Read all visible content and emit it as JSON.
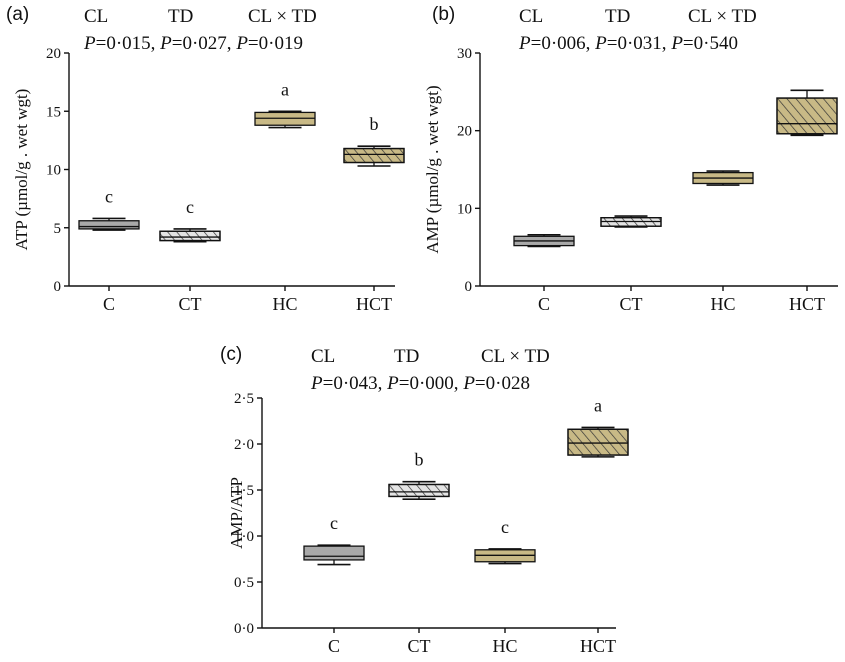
{
  "chart_data": [
    {
      "type": "box",
      "panel_label": "(a)",
      "stats": {
        "headers": [
          "CL",
          "TD",
          "CL × TD"
        ],
        "p_values": [
          "P=0·015, ",
          "P=0·027, ",
          "P=0·019"
        ]
      },
      "ylabel": "ATP (µmol/g . wet wgt)",
      "ylim": [
        0,
        20
      ],
      "yticks": [
        "0",
        "5",
        "10",
        "15",
        "20"
      ],
      "categories": [
        "C",
        "CT",
        "HC",
        "HCT"
      ],
      "boxes": [
        {
          "min": 4.8,
          "q1": 4.9,
          "median": 5.1,
          "q3": 5.6,
          "max": 5.8
        },
        {
          "min": 3.8,
          "q1": 3.9,
          "median": 4.2,
          "q3": 4.7,
          "max": 4.9
        },
        {
          "min": 13.6,
          "q1": 13.8,
          "median": 14.4,
          "q3": 14.9,
          "max": 15.0
        },
        {
          "min": 10.3,
          "q1": 10.6,
          "median": 11.3,
          "q3": 11.8,
          "max": 12.0
        }
      ],
      "letters": [
        "c",
        "c",
        "a",
        "b"
      ]
    },
    {
      "type": "box",
      "panel_label": "(b)",
      "stats": {
        "headers": [
          "CL",
          "TD",
          "CL × TD"
        ],
        "p_values": [
          "P=0·006, ",
          "P=0·031, ",
          "P=0·540"
        ]
      },
      "ylabel": "AMP (µmol/g . wet wgt)",
      "ylim": [
        0,
        30
      ],
      "yticks": [
        "0",
        "10",
        "20",
        "30"
      ],
      "categories": [
        "C",
        "CT",
        "HC",
        "HCT"
      ],
      "boxes": [
        {
          "min": 5.1,
          "q1": 5.2,
          "median": 5.8,
          "q3": 6.4,
          "max": 6.6
        },
        {
          "min": 7.6,
          "q1": 7.7,
          "median": 8.3,
          "q3": 8.8,
          "max": 9.0
        },
        {
          "min": 13.0,
          "q1": 13.2,
          "median": 13.9,
          "q3": 14.6,
          "max": 14.8
        },
        {
          "min": 19.4,
          "q1": 19.6,
          "median": 20.9,
          "q3": 24.2,
          "max": 25.2
        }
      ],
      "letters": []
    },
    {
      "type": "box",
      "panel_label": "(c)",
      "stats": {
        "headers": [
          "CL",
          "TD",
          "CL × TD"
        ],
        "p_values": [
          "P=0·043, ",
          "P=0·000, ",
          "P=0·028"
        ]
      },
      "ylabel": "AMP/ATP",
      "ylim": [
        0,
        2.5
      ],
      "yticks": [
        "0·0",
        "0·5",
        "1·0",
        "1·5",
        "2·0",
        "2·5"
      ],
      "categories": [
        "C",
        "CT",
        "HC",
        "HCT"
      ],
      "boxes": [
        {
          "min": 0.69,
          "q1": 0.74,
          "median": 0.78,
          "q3": 0.89,
          "max": 0.9
        },
        {
          "min": 1.4,
          "q1": 1.43,
          "median": 1.48,
          "q3": 1.56,
          "max": 1.59
        },
        {
          "min": 0.7,
          "q1": 0.72,
          "median": 0.79,
          "q3": 0.85,
          "max": 0.86
        },
        {
          "min": 1.86,
          "q1": 1.88,
          "median": 2.01,
          "q3": 2.16,
          "max": 2.18
        }
      ],
      "letters": [
        "c",
        "b",
        "c",
        "a"
      ]
    }
  ],
  "legend_styles": {
    "C": {
      "fill": "#a9a9a9",
      "hatch": false
    },
    "CT": {
      "fill": "#e4e4e4",
      "hatch": true
    },
    "HC": {
      "fill": "#c8b986",
      "hatch": false
    },
    "HCT": {
      "fill": "#c8b986",
      "hatch": true
    }
  }
}
